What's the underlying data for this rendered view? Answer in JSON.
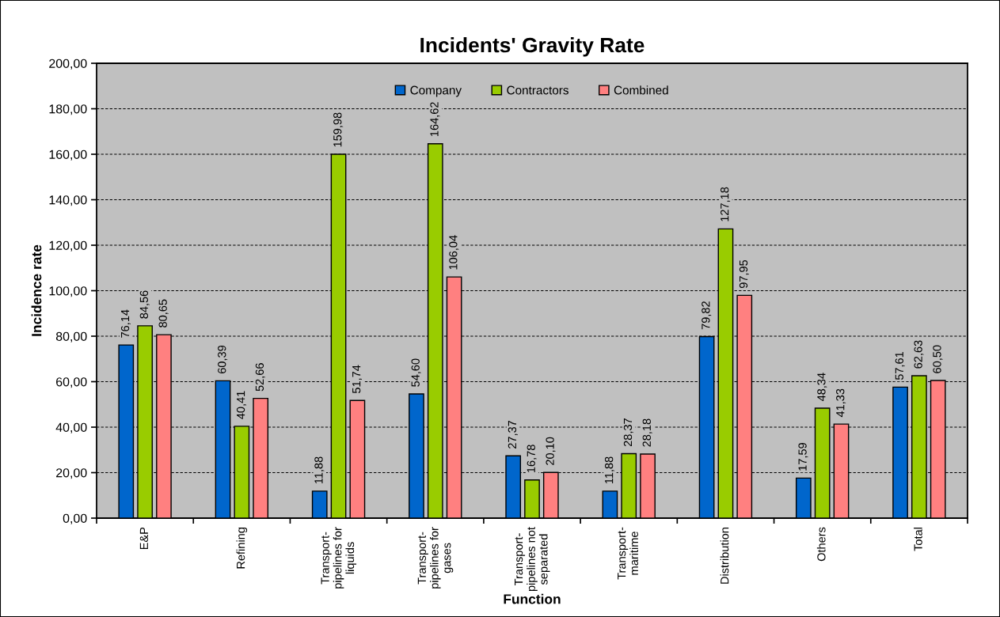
{
  "chart_data": {
    "type": "bar",
    "title": "Incidents' Gravity Rate",
    "xlabel": "Function",
    "ylabel": "Incidence rate",
    "categories": [
      "E&P",
      "Refining",
      "Transport-\npipelines for\nliquids",
      "Transport-\npipelines for\ngases",
      "Transport-\npipelines not\nseparated",
      "Transport-\nmaritime",
      "Distribution",
      "Others",
      "Total"
    ],
    "series": [
      {
        "name": "Company",
        "color": "#0066cc",
        "values": [
          76.14,
          60.39,
          11.88,
          54.6,
          27.37,
          11.88,
          79.82,
          17.59,
          57.61
        ],
        "value_labels": [
          "76,14",
          "60,39",
          "11,88",
          "54,60",
          "27,37",
          "11,88",
          "79,82",
          "17,59",
          "57,61"
        ]
      },
      {
        "name": "Contractors",
        "color": "#99cc00",
        "values": [
          84.56,
          40.41,
          159.98,
          164.62,
          16.78,
          28.37,
          127.18,
          48.34,
          62.63
        ],
        "value_labels": [
          "84,56",
          "40,41",
          "159,98",
          "164,62",
          "16,78",
          "28,37",
          "127,18",
          "48,34",
          "62,63"
        ]
      },
      {
        "name": "Combined",
        "color": "#ff8080",
        "values": [
          80.65,
          52.66,
          51.74,
          106.04,
          20.1,
          28.18,
          97.95,
          41.33,
          60.5
        ],
        "value_labels": [
          "80,65",
          "52,66",
          "51,74",
          "106,04",
          "20,10",
          "28,18",
          "97,95",
          "41,33",
          "60,50"
        ]
      }
    ],
    "ylim": [
      0,
      200
    ],
    "yticks": [
      {
        "value": 0,
        "label": "0,00"
      },
      {
        "value": 20,
        "label": "20,00"
      },
      {
        "value": 40,
        "label": "40,00"
      },
      {
        "value": 60,
        "label": "60,00"
      },
      {
        "value": 80,
        "label": "80,00"
      },
      {
        "value": 100,
        "label": "100,00"
      },
      {
        "value": 120,
        "label": "120,00"
      },
      {
        "value": 140,
        "label": "140,00"
      },
      {
        "value": 160,
        "label": "160,00"
      },
      {
        "value": 180,
        "label": "180,00"
      },
      {
        "value": 200,
        "label": "200,00"
      }
    ],
    "grid": "y",
    "legend": "top"
  }
}
